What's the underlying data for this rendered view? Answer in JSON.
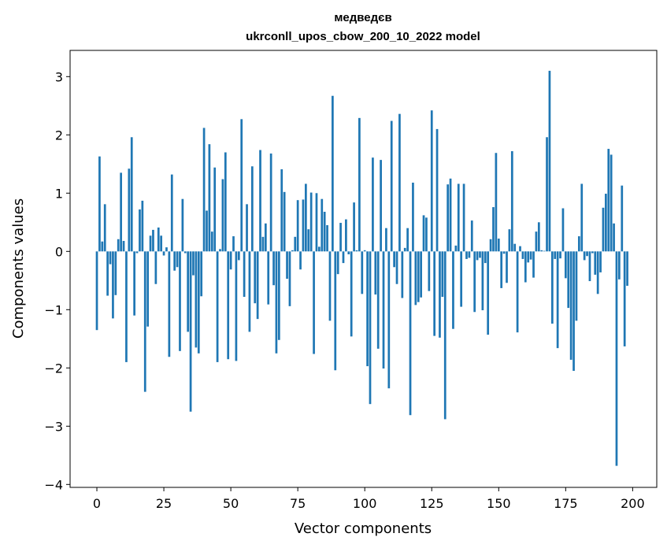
{
  "chart_data": {
    "type": "bar",
    "title_line1": "медведєв",
    "title_line2": "ukrconll_upos_cbow_200_10_2022 model",
    "xlabel": "Vector components",
    "ylabel": "Components values",
    "xlim": [
      -10,
      209
    ],
    "ylim": [
      -4.05,
      3.45
    ],
    "xticks": [
      0,
      25,
      50,
      75,
      100,
      125,
      150,
      175,
      200
    ],
    "xtick_labels": [
      "0",
      "25",
      "50",
      "75",
      "100",
      "125",
      "150",
      "175",
      "200"
    ],
    "yticks": [
      -4,
      -3,
      -2,
      -1,
      0,
      1,
      2,
      3
    ],
    "ytick_labels": [
      "−4",
      "−3",
      "−2",
      "−1",
      "0",
      "1",
      "2",
      "3"
    ],
    "bar_color": "#1f77b4",
    "values": [
      -1.35,
      1.63,
      0.17,
      0.81,
      -0.76,
      -0.22,
      -1.15,
      -0.75,
      0.21,
      1.35,
      0.18,
      -1.9,
      1.42,
      1.96,
      -1.1,
      -0.03,
      0.72,
      0.87,
      -2.41,
      -1.29,
      0.27,
      0.37,
      -0.56,
      0.41,
      0.27,
      -0.07,
      0.07,
      -1.81,
      1.32,
      -0.33,
      -0.27,
      -1.71,
      0.9,
      -0.03,
      -1.38,
      -2.75,
      -0.41,
      -1.65,
      -1.75,
      -0.77,
      2.12,
      0.7,
      1.84,
      0.34,
      1.44,
      -1.9,
      0.04,
      1.24,
      1.7,
      -1.85,
      -0.31,
      0.26,
      -1.88,
      -0.15,
      2.27,
      -0.78,
      0.81,
      -1.38,
      1.46,
      -0.89,
      -1.16,
      1.74,
      0.25,
      0.48,
      -0.91,
      1.68,
      -0.58,
      -1.75,
      -1.52,
      1.41,
      1.02,
      -0.47,
      -0.94,
      0.02,
      0.25,
      0.88,
      -0.31,
      0.89,
      1.16,
      0.38,
      1.01,
      -1.76,
      1.0,
      0.08,
      0.9,
      0.68,
      0.45,
      -1.19,
      2.67,
      -2.04,
      -0.39,
      0.49,
      -0.2,
      0.55,
      -0.05,
      -1.46,
      0.84,
      0.02,
      2.29,
      -0.73,
      0.02,
      -1.97,
      -2.62,
      1.61,
      -0.74,
      -1.67,
      1.57,
      -2.01,
      0.4,
      -2.35,
      2.24,
      -0.27,
      -0.56,
      2.36,
      -0.8,
      0.06,
      0.4,
      -2.81,
      1.18,
      -0.92,
      -0.87,
      -0.79,
      0.62,
      0.58,
      -0.68,
      2.42,
      -1.45,
      2.1,
      -1.48,
      -0.78,
      -2.88,
      1.15,
      1.25,
      -1.33,
      0.1,
      1.16,
      -0.95,
      1.16,
      -0.13,
      -0.11,
      0.53,
      -1.04,
      -0.15,
      -0.11,
      -1.01,
      -0.2,
      -1.43,
      0.21,
      0.76,
      1.69,
      0.22,
      -0.63,
      -0.04,
      -0.54,
      0.38,
      1.72,
      0.13,
      -1.39,
      0.09,
      -0.13,
      -0.53,
      -0.19,
      -0.14,
      -0.45,
      0.34,
      0.5,
      0.02,
      0.01,
      1.96,
      3.1,
      -1.24,
      -0.13,
      -1.66,
      -0.12,
      0.74,
      -0.46,
      -0.97,
      -1.86,
      -2.05,
      -1.19,
      0.26,
      1.16,
      -0.15,
      -0.08,
      -0.51,
      -0.03,
      -0.4,
      -0.73,
      -0.36,
      0.75,
      0.99,
      1.76,
      1.66,
      0.48,
      -3.68,
      -0.48,
      1.13,
      -1.63,
      -0.59
    ]
  }
}
